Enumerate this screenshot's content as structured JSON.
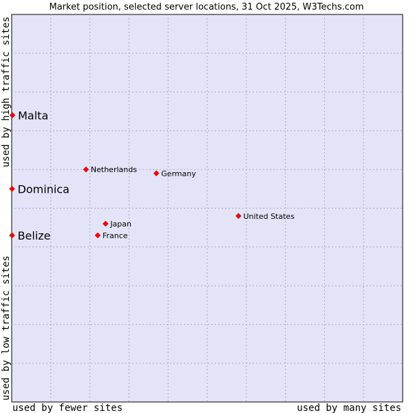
{
  "chart_data": {
    "type": "scatter",
    "title": "Market position, selected server locations, 31 Oct 2025, W3Techs.com",
    "xlabel_left": "used by fewer sites",
    "xlabel_right": "used by many sites",
    "ylabel_bottom": "used by low traffic sites",
    "ylabel_top": "used by high traffic sites",
    "xlim": [
      0,
      100
    ],
    "ylim": [
      0,
      100
    ],
    "grid": true,
    "points": [
      {
        "label": "Malta",
        "x": 0.2,
        "y": 74,
        "emphasis": true
      },
      {
        "label": "Dominica",
        "x": 0.1,
        "y": 55,
        "emphasis": true
      },
      {
        "label": "Belize",
        "x": 0.1,
        "y": 43,
        "emphasis": true
      },
      {
        "label": "Netherlands",
        "x": 19,
        "y": 60,
        "emphasis": false
      },
      {
        "label": "Germany",
        "x": 37,
        "y": 59,
        "emphasis": false
      },
      {
        "label": "United States",
        "x": 58,
        "y": 48,
        "emphasis": false
      },
      {
        "label": "Japan",
        "x": 24,
        "y": 46,
        "emphasis": false
      },
      {
        "label": "France",
        "x": 22,
        "y": 43,
        "emphasis": false
      }
    ],
    "point_color": "#ff0000"
  }
}
